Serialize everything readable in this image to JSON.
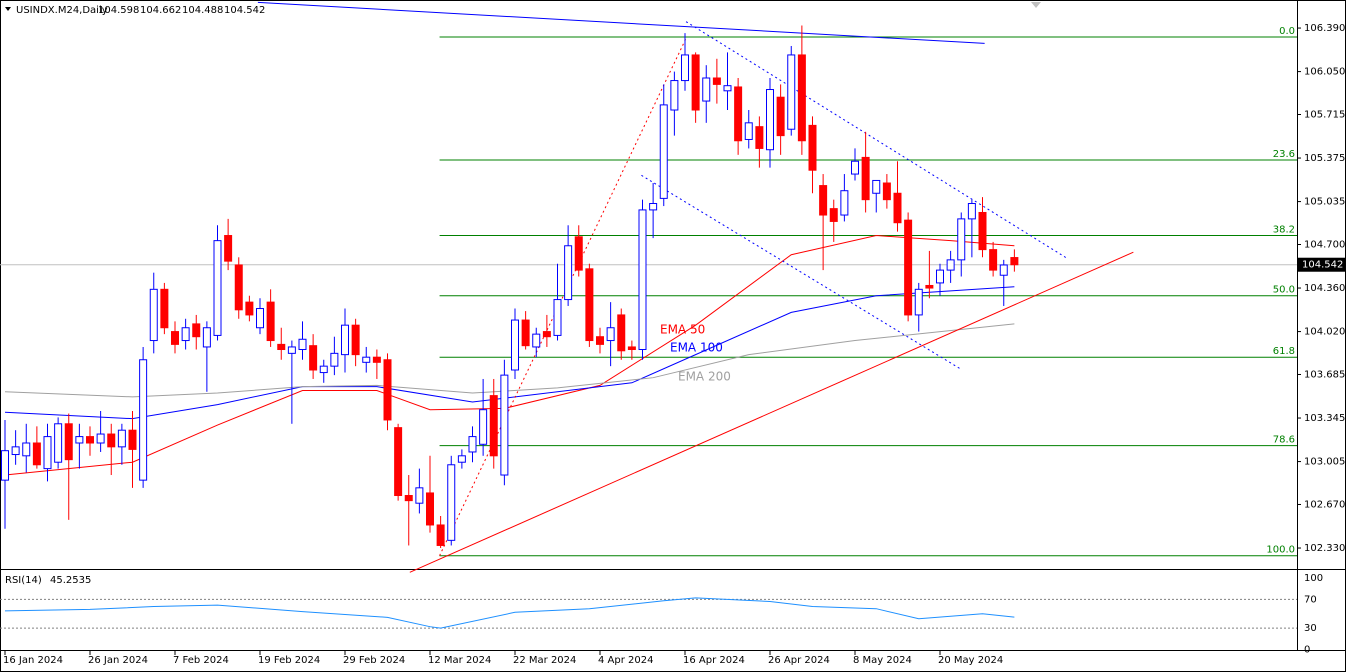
{
  "chart_data": {
    "type": "candlestick",
    "header": {
      "symbol": "USINDX.M24,Daily",
      "open": 104.598,
      "high": 104.662,
      "low": 104.488,
      "close": 104.542
    },
    "categories": [
      "16 Jan 2024",
      null,
      null,
      null,
      null,
      null,
      null,
      null,
      "26 Jan 2024",
      null,
      null,
      null,
      null,
      null,
      null,
      null,
      "7 Feb 2024",
      null,
      null,
      null,
      null,
      null,
      null,
      null,
      "19 Feb 2024",
      null,
      null,
      null,
      null,
      null,
      null,
      null,
      "29 Feb 2024",
      null,
      null,
      null,
      null,
      null,
      null,
      null,
      "12 Mar 2024",
      null,
      null,
      null,
      null,
      null,
      null,
      null,
      "22 Mar 2024",
      null,
      null,
      null,
      null,
      null,
      null,
      null,
      "4 Apr 2024",
      null,
      null,
      null,
      null,
      null,
      null,
      null,
      "16 Apr 2024",
      null,
      null,
      null,
      null,
      null,
      null,
      null,
      "26 Apr 2024",
      null,
      null,
      null,
      null,
      null,
      null,
      null,
      "8 May 2024",
      null,
      null,
      null,
      null,
      null,
      null,
      null,
      "20 May 2024",
      null,
      null,
      null,
      null,
      null,
      null,
      null
    ],
    "open": [
      102.86,
      103.06,
      103.05,
      103.15,
      102.95,
      103.0,
      103.3,
      103.15,
      103.2,
      103.15,
      103.22,
      103.12,
      103.25,
      102.86,
      103.95,
      104.35,
      104.02,
      103.95,
      104.08,
      103.9,
      103.99,
      104.77,
      104.54,
      104.25,
      104.05,
      104.25,
      103.92,
      103.85,
      103.88,
      103.91,
      103.7,
      103.75,
      103.84,
      104.07,
      103.78,
      103.82,
      103.8,
      103.27,
      102.74,
      102.68,
      102.76,
      102.51,
      102.39,
      103.0,
      103.08,
      103.14,
      103.52,
      102.9,
      103.72,
      104.11,
      103.9,
      104.02,
      103.99,
      104.27,
      104.76,
      104.51,
      103.98,
      103.95,
      104.15,
      103.9,
      103.88,
      104.97,
      105.06,
      105.75,
      105.98,
      106.18,
      105.82,
      106.0,
      105.9,
      105.93,
      105.52,
      105.62,
      105.44,
      105.85,
      105.6,
      106.18,
      105.63,
      105.16,
      104.98,
      104.93,
      105.25,
      105.38,
      105.1,
      105.18,
      105.1,
      104.89,
      104.15,
      104.38,
      104.4,
      104.5,
      104.58,
      104.9,
      104.95,
      104.66,
      104.46,
      104.598
    ],
    "high": [
      103.33,
      103.25,
      103.3,
      103.28,
      103.3,
      103.35,
      103.38,
      103.3,
      103.28,
      103.4,
      103.3,
      103.3,
      103.4,
      103.9,
      104.48,
      104.4,
      104.1,
      104.12,
      104.15,
      104.1,
      104.85,
      104.9,
      104.6,
      104.3,
      104.28,
      104.35,
      104.05,
      103.95,
      104.1,
      104.0,
      103.8,
      103.98,
      104.2,
      104.12,
      103.9,
      103.88,
      103.85,
      103.3,
      102.9,
      102.95,
      103.05,
      102.58,
      103.05,
      103.1,
      103.28,
      103.65,
      103.65,
      103.8,
      104.2,
      104.18,
      104.05,
      104.15,
      104.55,
      104.85,
      104.85,
      104.55,
      104.05,
      104.25,
      104.2,
      103.95,
      105.05,
      105.18,
      105.95,
      106.05,
      106.35,
      106.2,
      106.1,
      106.15,
      106.2,
      106.0,
      105.75,
      105.7,
      106.0,
      105.95,
      106.25,
      106.41,
      105.7,
      105.25,
      105.05,
      105.25,
      105.45,
      105.58,
      105.2,
      105.25,
      105.35,
      104.95,
      104.4,
      104.65,
      104.55,
      104.65,
      104.95,
      105.05,
      105.07,
      104.72,
      104.58,
      104.662
    ],
    "low": [
      102.48,
      102.98,
      102.92,
      102.95,
      102.85,
      102.95,
      102.55,
      102.95,
      103.05,
      103.08,
      102.9,
      102.98,
      102.8,
      102.8,
      103.85,
      104.0,
      103.85,
      103.88,
      103.88,
      103.55,
      103.95,
      104.5,
      104.12,
      104.1,
      104.0,
      103.9,
      103.8,
      103.3,
      103.8,
      103.65,
      103.62,
      103.68,
      103.7,
      103.75,
      103.7,
      103.65,
      103.25,
      102.7,
      102.35,
      102.6,
      102.45,
      102.33,
      102.35,
      102.95,
      103.0,
      103.05,
      102.95,
      102.82,
      103.65,
      103.88,
      103.82,
      103.9,
      103.95,
      104.22,
      104.45,
      103.9,
      103.85,
      103.75,
      103.8,
      103.8,
      103.8,
      104.75,
      105.0,
      105.55,
      105.9,
      105.65,
      105.65,
      105.8,
      105.75,
      105.4,
      105.45,
      105.3,
      105.3,
      105.4,
      105.55,
      105.4,
      105.1,
      104.5,
      104.72,
      104.88,
      105.2,
      104.95,
      104.95,
      104.98,
      104.8,
      104.1,
      104.02,
      104.28,
      104.3,
      104.4,
      104.45,
      104.6,
      104.6,
      104.45,
      104.22,
      104.488
    ],
    "close": [
      103.09,
      103.12,
      103.15,
      102.98,
      103.2,
      103.3,
      103.02,
      103.2,
      103.15,
      103.22,
      103.12,
      103.25,
      103.1,
      103.8,
      104.35,
      104.05,
      103.92,
      104.05,
      103.98,
      104.05,
      104.73,
      104.57,
      104.19,
      104.15,
      104.2,
      103.95,
      103.88,
      103.9,
      103.96,
      103.72,
      103.75,
      103.85,
      104.07,
      103.84,
      103.82,
      103.78,
      103.33,
      102.74,
      102.7,
      102.8,
      102.51,
      102.35,
      102.98,
      103.05,
      103.2,
      103.41,
      103.05,
      103.68,
      104.11,
      103.91,
      104.0,
      103.98,
      104.27,
      104.69,
      104.5,
      103.95,
      103.92,
      104.05,
      103.87,
      103.88,
      104.97,
      105.02,
      105.79,
      105.98,
      106.18,
      105.75,
      106.0,
      105.95,
      105.94,
      105.51,
      105.65,
      105.45,
      105.91,
      105.55,
      106.18,
      105.51,
      105.28,
      104.93,
      104.88,
      105.12,
      105.35,
      105.05,
      105.2,
      105.05,
      104.87,
      104.15,
      104.35,
      104.36,
      104.5,
      104.58,
      104.9,
      105.02,
      104.66,
      104.5,
      104.54,
      104.542
    ],
    "bull_color": "#0000ff",
    "bear_color": "#ff0000",
    "ylim": [
      102.174,
      106.609
    ],
    "yticks": [
      {
        "value": 106.39,
        "label": "106.390"
      },
      {
        "value": 106.05,
        "label": "106.050"
      },
      {
        "value": 105.715,
        "label": "105.715"
      },
      {
        "value": 105.375,
        "label": "105.375"
      },
      {
        "value": 105.035,
        "label": "105.035"
      },
      {
        "value": 104.7,
        "label": "104.700"
      },
      {
        "value": 104.36,
        "label": "104.360"
      },
      {
        "value": 104.02,
        "label": "104.020"
      },
      {
        "value": 103.685,
        "label": "103.685"
      },
      {
        "value": 103.345,
        "label": "103.345"
      },
      {
        "value": 103.005,
        "label": "103.005"
      },
      {
        "value": 102.67,
        "label": "102.670"
      },
      {
        "value": 102.33,
        "label": "102.330"
      }
    ],
    "ema": [
      {
        "name": "EMA 50",
        "color": "#ff0000",
        "x": [
          0,
          12,
          20,
          28,
          35,
          40,
          47,
          56,
          65,
          74,
          82,
          89,
          95
        ],
        "values": [
          102.9,
          103.0,
          103.29,
          103.56,
          103.56,
          103.41,
          103.42,
          103.6,
          104.07,
          104.62,
          104.77,
          104.73,
          104.69
        ]
      },
      {
        "name": "EMA 100",
        "color": "#0000ff",
        "x": [
          0,
          12,
          20,
          28,
          35,
          44,
          52,
          59,
          65,
          74,
          82,
          95
        ],
        "values": [
          103.39,
          103.34,
          103.45,
          103.59,
          103.59,
          103.47,
          103.55,
          103.62,
          103.84,
          104.17,
          104.3,
          104.37
        ]
      },
      {
        "name": "EMA 200",
        "color": "#a0a0a0",
        "x": [
          0,
          12,
          20,
          28,
          35,
          44,
          52,
          61,
          70,
          80,
          95
        ],
        "values": [
          103.55,
          103.51,
          103.54,
          103.59,
          103.6,
          103.54,
          103.58,
          103.66,
          103.84,
          103.95,
          104.08
        ]
      }
    ],
    "fibonacci": {
      "color": "#008000",
      "start": 40.9,
      "levels": [
        {
          "label": "0.0",
          "value": 106.32
        },
        {
          "label": "23.6",
          "value": 105.36
        },
        {
          "label": "38.2",
          "value": 104.77
        },
        {
          "label": "50.0",
          "value": 104.3
        },
        {
          "label": "61.8",
          "value": 103.82
        },
        {
          "label": "78.6",
          "value": 103.13
        },
        {
          "label": "100.0",
          "value": 102.27
        }
      ]
    },
    "trendlines": [
      {
        "color": "#ff0000",
        "dashed": false,
        "x": [
          38.1,
          106.2
        ],
        "y": [
          102.14,
          104.64
        ]
      },
      {
        "color": "#0000ff",
        "dashed": false,
        "x": [
          23.8,
          92.2
        ],
        "y": [
          106.59,
          106.27
        ]
      },
      {
        "color": "#0000ff",
        "dashed": true,
        "x": [
          64.1,
          100
        ],
        "y": [
          106.44,
          104.59
        ]
      },
      {
        "color": "#0000ff",
        "dashed": true,
        "x": [
          59.9,
          89.9
        ],
        "y": [
          105.24,
          103.73
        ]
      },
      {
        "color": "#ff0000",
        "dashed": true,
        "x": [
          40.9,
          64.1
        ],
        "y": [
          102.27,
          106.31
        ]
      }
    ],
    "indicator": {
      "title": "RSI(14)",
      "value": 45.2535,
      "color": "#1e90ff",
      "ylim": [
        1,
        108
      ],
      "yticks": [
        100,
        70,
        30,
        0
      ],
      "levels": [
        70,
        30
      ],
      "x": [
        0,
        8,
        14,
        20,
        28,
        36,
        40,
        41,
        48,
        55,
        62,
        65,
        72,
        76,
        82,
        86,
        92,
        95
      ],
      "values": [
        54,
        56,
        60,
        62,
        53,
        45,
        32,
        30,
        52,
        57,
        68,
        72,
        67,
        60,
        57,
        43,
        50,
        45.2535
      ]
    }
  }
}
